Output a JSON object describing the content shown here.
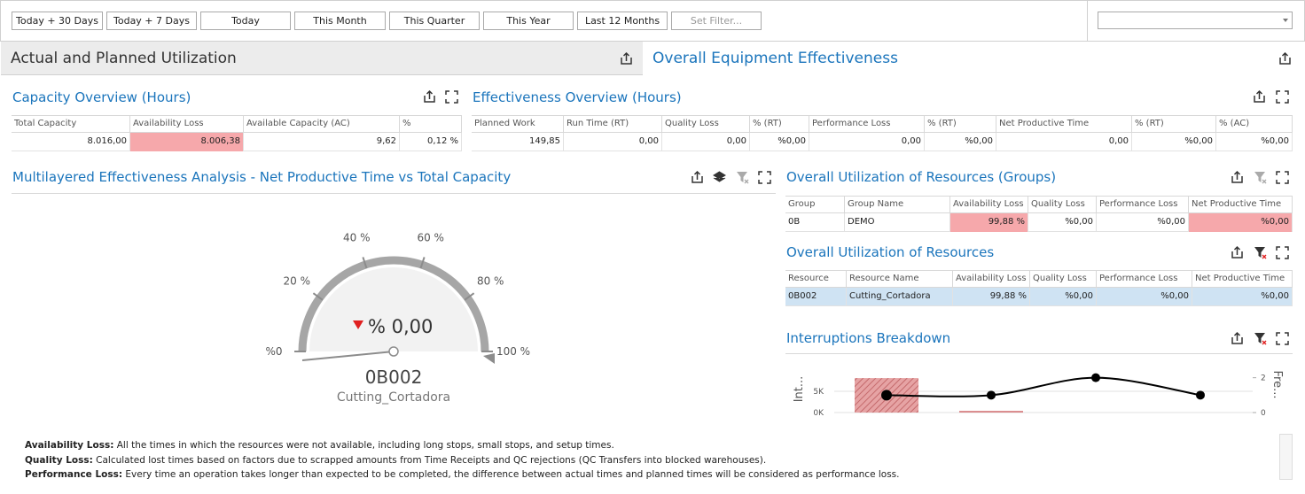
{
  "toolbar": {
    "buttons": [
      "Today + 30 Days",
      "Today + 7 Days",
      "Today",
      "This Month",
      "This Quarter",
      "This Year",
      "Last 12 Months"
    ],
    "filter_placeholder": "Set Filter..."
  },
  "header": {
    "left_title": "Actual and Planned Utilization",
    "right_title": "Overall Equipment Effectiveness"
  },
  "capacity_overview": {
    "title": "Capacity Overview (Hours)",
    "columns": [
      "Total Capacity",
      "Availability Loss",
      "Available Capacity (AC)",
      "%"
    ],
    "rows": [
      [
        "8.016,00",
        "8.006,38",
        "9,62",
        "0,12 %"
      ]
    ]
  },
  "effectiveness_overview": {
    "title": "Effectiveness Overview (Hours)",
    "columns": [
      "Planned Work",
      "Run Time (RT)",
      "Quality Loss",
      "% (RT)",
      "Performance Loss",
      "% (RT)",
      "Net Productive Time",
      "% (RT)",
      "% (AC)"
    ],
    "rows": [
      [
        "149,85",
        "0,00",
        "0,00",
        "%0,00",
        "0,00",
        "%0,00",
        "0,00",
        "%0,00",
        "%0,00"
      ]
    ]
  },
  "gauge": {
    "title": "Multilayered Effectiveness Analysis - Net Productive Time vs Total Capacity",
    "range": [
      0,
      100
    ],
    "ticks": [
      {
        "value": 0,
        "label": "%0"
      },
      {
        "value": 20,
        "label": "20 %"
      },
      {
        "value": 40,
        "label": "40 %"
      },
      {
        "value": 60,
        "label": "60 %"
      },
      {
        "value": 80,
        "label": "80 %"
      },
      {
        "value": 100,
        "label": "100 %"
      }
    ],
    "value": 0,
    "value_label": "% 0,00",
    "resource": "0B002",
    "resource_name": "Cutting_Cortadora"
  },
  "groups": {
    "title": "Overall Utilization of Resources (Groups)",
    "columns": [
      "Group",
      "Group Name",
      "Availability Loss",
      "Quality Loss",
      "Performance Loss",
      "Net Productive Time"
    ],
    "rows": [
      [
        "0B",
        "DEMO",
        "99,88 %",
        "%0,00",
        "%0,00",
        "%0,00"
      ]
    ]
  },
  "resources": {
    "title": "Overall Utilization of Resources",
    "columns": [
      "Resource",
      "Resource Name",
      "Availability Loss",
      "Quality Loss",
      "Performance Loss",
      "Net Productive Time"
    ],
    "rows": [
      [
        "0B002",
        "Cutting_Cortadora",
        "99,88 %",
        "%0,00",
        "%0,00",
        "%0,00"
      ]
    ]
  },
  "interruptions": {
    "title": "Interruptions Breakdown",
    "type": "bar",
    "categories": [
      null,
      null,
      null,
      null
    ],
    "ylabel": "Int...",
    "y2label": "Fre...",
    "ylim": [
      0,
      12700
    ],
    "yticks": [
      {
        "value": 0,
        "label": "0K"
      },
      {
        "value": 5000,
        "label": "5K"
      }
    ],
    "y2lim": [
      0,
      3.1
    ],
    "y2ticks": [
      0,
      2
    ],
    "grid": true,
    "series": [
      {
        "color": "#d9888a",
        "values": [
          8100,
          400,
          0,
          0
        ]
      },
      {
        "color": "#000000",
        "axis": "y2",
        "values": [
          1,
          1,
          2,
          1
        ]
      }
    ]
  },
  "notes": [
    {
      "term": "Availability Loss:",
      "text": "All the times in which the resources were not available, including long stops, small stops, and setup times."
    },
    {
      "term": "Quality Loss:",
      "text": "Calculated lost times based on factors due to scrapped amounts from Time Receipts and QC rejections (QC Transfers into blocked warehouses)."
    },
    {
      "term": "Performance Loss:",
      "text": "Every time an operation takes longer than expected to be completed, the difference between actual times and planned times will be considered as performance loss."
    }
  ]
}
